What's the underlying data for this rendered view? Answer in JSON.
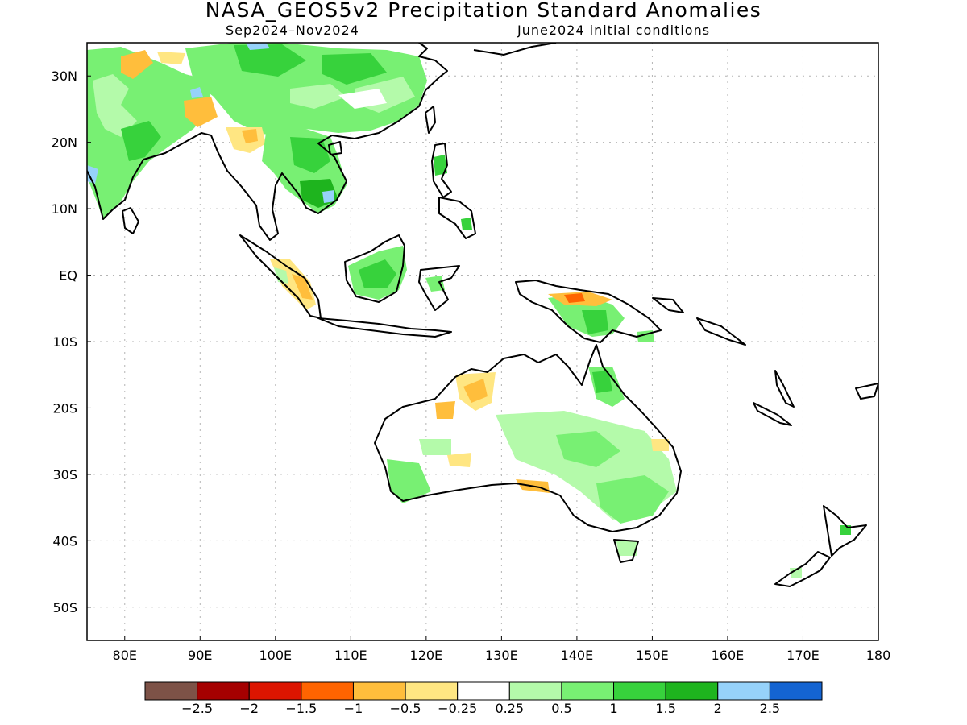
{
  "title": "NASA_GEOS5v2 Precipitation Standard Anomalies",
  "subtitle_left": "Sep2024–Nov2024",
  "subtitle_right": "June2024 initial conditions",
  "map_data": {
    "type": "contour-map",
    "variable": "Precipitation Standard Anomalies",
    "lon_range": [
      75,
      180
    ],
    "lat_range": [
      -55,
      35
    ],
    "lon_ticks": [
      "80E",
      "90E",
      "100E",
      "110E",
      "120E",
      "130E",
      "140E",
      "150E",
      "160E",
      "170E",
      "180"
    ],
    "lat_ticks": [
      "30N",
      "20N",
      "10N",
      "EQ",
      "10S",
      "20S",
      "30S",
      "40S",
      "50S"
    ],
    "grid": true,
    "colorbar": {
      "colors": [
        "#7d5247",
        "#a50000",
        "#dd1500",
        "#ff6400",
        "#ffbe3c",
        "#ffe682",
        "#ffffff",
        "#b4faaa",
        "#78f073",
        "#37d23c",
        "#1eb41e",
        "#96d2fa",
        "#1464d2"
      ],
      "labels": [
        "−2.5",
        "−2",
        "−1.5",
        "−1",
        "−0.5",
        "−0.25",
        "0.25",
        "0.5",
        "1",
        "1.5",
        "2",
        "2.5"
      ]
    }
  }
}
